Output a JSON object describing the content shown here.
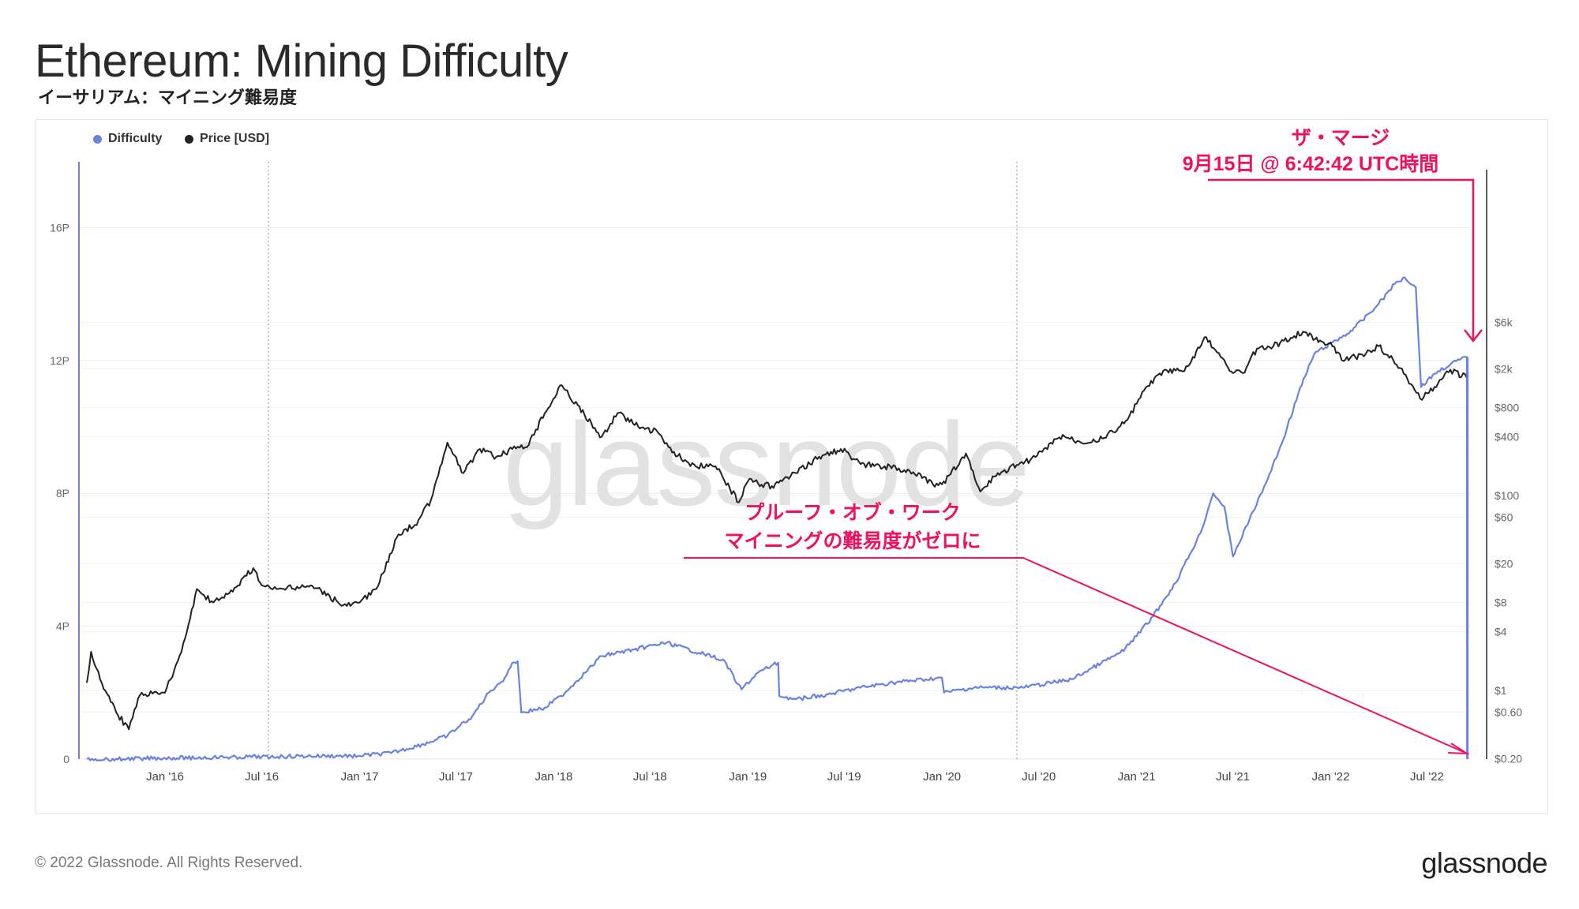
{
  "title": "Ethereum: Mining Difficulty",
  "subtitle": "イーサリアム：マイニング難易度",
  "footer": "© 2022 Glassnode. All Rights Reserved.",
  "logo": "glassnode",
  "watermark": "glassnode",
  "colors": {
    "difficulty": "#6a82e0",
    "price": "#222222",
    "annotation": "#f0105f"
  },
  "annotations": {
    "merge_line1": "ザ・マージ",
    "merge_line2": "9月15日 @ 6:42:42 UTC時間",
    "pow_line1": "プルーフ・オブ・ワーク",
    "pow_line2": "マイニングの難易度がゼロに"
  },
  "chart_data": {
    "type": "line",
    "legend": [
      "Difficulty",
      "Price [USD]"
    ],
    "legend_placement": "top-left",
    "x_ticks": [
      "Jan '16",
      "Jul '16",
      "Jan '17",
      "Jul '17",
      "Jan '18",
      "Jul '18",
      "Jan '19",
      "Jul '19",
      "Jan '20",
      "Jul '20",
      "Jan '21",
      "Jul '21",
      "Jan '22",
      "Jul '22"
    ],
    "x_range": [
      "2015-08-07",
      "2022-09-20"
    ],
    "left_axis": {
      "label": "Difficulty",
      "ticks": [
        "0",
        "4P",
        "8P",
        "12P",
        "16P"
      ],
      "range": [
        0,
        18
      ]
    },
    "right_axis": {
      "label": "Price [USD]",
      "scale": "log",
      "ticks": [
        "$0.20",
        "$0.60",
        "$1",
        "$4",
        "$8",
        "$20",
        "$60",
        "$100",
        "$400",
        "$800",
        "$2k",
        "$6k"
      ],
      "range": [
        0.2,
        6000
      ]
    },
    "grid": "horizontal",
    "series": [
      {
        "name": "Difficulty",
        "axis": "left",
        "unit": "P",
        "points": [
          [
            "2015-08-07",
            0.002
          ],
          [
            "2015-10-01",
            0.006
          ],
          [
            "2016-01-01",
            0.03
          ],
          [
            "2016-04-01",
            0.05
          ],
          [
            "2016-07-01",
            0.07
          ],
          [
            "2016-10-01",
            0.09
          ],
          [
            "2017-01-01",
            0.1
          ],
          [
            "2017-03-01",
            0.18
          ],
          [
            "2017-05-01",
            0.45
          ],
          [
            "2017-06-15",
            0.7
          ],
          [
            "2017-08-01",
            1.3
          ],
          [
            "2017-09-01",
            2.0
          ],
          [
            "2017-10-01",
            2.45
          ],
          [
            "2017-10-15",
            2.9
          ],
          [
            "2017-10-25",
            2.95
          ],
          [
            "2017-11-01",
            1.4
          ],
          [
            "2017-12-15",
            1.55
          ],
          [
            "2018-01-15",
            1.9
          ],
          [
            "2018-03-01",
            2.6
          ],
          [
            "2018-04-01",
            3.1
          ],
          [
            "2018-06-01",
            3.3
          ],
          [
            "2018-08-01",
            3.5
          ],
          [
            "2018-10-01",
            3.2
          ],
          [
            "2018-11-15",
            3.0
          ],
          [
            "2018-12-20",
            2.1
          ],
          [
            "2019-01-20",
            2.6
          ],
          [
            "2019-02-27",
            2.9
          ],
          [
            "2019-03-01",
            1.9
          ],
          [
            "2019-04-01",
            1.8
          ],
          [
            "2019-06-01",
            1.95
          ],
          [
            "2019-08-01",
            2.15
          ],
          [
            "2019-10-01",
            2.3
          ],
          [
            "2019-12-01",
            2.4
          ],
          [
            "2020-01-01",
            2.45
          ],
          [
            "2020-01-05",
            2.0
          ],
          [
            "2020-03-01",
            2.15
          ],
          [
            "2020-06-01",
            2.15
          ],
          [
            "2020-09-01",
            2.4
          ],
          [
            "2020-12-01",
            3.2
          ],
          [
            "2021-01-01",
            3.7
          ],
          [
            "2021-02-01",
            4.3
          ],
          [
            "2021-03-15",
            5.3
          ],
          [
            "2021-05-01",
            6.8
          ],
          [
            "2021-05-25",
            8.0
          ],
          [
            "2021-06-15",
            7.6
          ],
          [
            "2021-07-01",
            6.1
          ],
          [
            "2021-08-01",
            7.2
          ],
          [
            "2021-09-01",
            8.3
          ],
          [
            "2021-10-01",
            9.5
          ],
          [
            "2021-11-01",
            11.0
          ],
          [
            "2021-12-01",
            12.2
          ],
          [
            "2022-01-01",
            12.5
          ],
          [
            "2022-02-01",
            12.8
          ],
          [
            "2022-03-01",
            13.2
          ],
          [
            "2022-04-01",
            13.7
          ],
          [
            "2022-05-01",
            14.3
          ],
          [
            "2022-05-20",
            14.5
          ],
          [
            "2022-06-10",
            14.2
          ],
          [
            "2022-06-20",
            11.2
          ],
          [
            "2022-07-15",
            11.6
          ],
          [
            "2022-08-15",
            11.9
          ],
          [
            "2022-09-14",
            12.1
          ],
          [
            "2022-09-15",
            0.0
          ]
        ]
      },
      {
        "name": "Price [USD]",
        "axis": "right",
        "unit": "USD",
        "points": [
          [
            "2015-08-07",
            1.2
          ],
          [
            "2015-08-15",
            2.5
          ],
          [
            "2015-09-01",
            1.3
          ],
          [
            "2015-10-01",
            0.6
          ],
          [
            "2015-10-25",
            0.4
          ],
          [
            "2015-11-15",
            0.9
          ],
          [
            "2016-01-01",
            0.95
          ],
          [
            "2016-02-01",
            2.5
          ],
          [
            "2016-03-01",
            11
          ],
          [
            "2016-04-01",
            8
          ],
          [
            "2016-05-01",
            10
          ],
          [
            "2016-06-15",
            18
          ],
          [
            "2016-07-01",
            12
          ],
          [
            "2016-08-01",
            11
          ],
          [
            "2016-10-01",
            12
          ],
          [
            "2016-12-01",
            7.5
          ],
          [
            "2017-01-01",
            8
          ],
          [
            "2017-02-01",
            11
          ],
          [
            "2017-03-15",
            40
          ],
          [
            "2017-04-15",
            50
          ],
          [
            "2017-05-15",
            90
          ],
          [
            "2017-06-15",
            350
          ],
          [
            "2017-07-15",
            170
          ],
          [
            "2017-08-15",
            300
          ],
          [
            "2017-09-15",
            250
          ],
          [
            "2017-10-15",
            300
          ],
          [
            "2017-11-15",
            330
          ],
          [
            "2017-12-15",
            700
          ],
          [
            "2018-01-13",
            1350
          ],
          [
            "2018-02-15",
            850
          ],
          [
            "2018-04-01",
            400
          ],
          [
            "2018-05-01",
            700
          ],
          [
            "2018-06-15",
            500
          ],
          [
            "2018-07-15",
            450
          ],
          [
            "2018-08-15",
            280
          ],
          [
            "2018-09-15",
            200
          ],
          [
            "2018-11-01",
            200
          ],
          [
            "2018-12-15",
            85
          ],
          [
            "2019-01-01",
            140
          ],
          [
            "2019-02-15",
            125
          ],
          [
            "2019-04-01",
            170
          ],
          [
            "2019-05-15",
            250
          ],
          [
            "2019-06-25",
            300
          ],
          [
            "2019-08-01",
            210
          ],
          [
            "2019-09-15",
            200
          ],
          [
            "2019-11-01",
            180
          ],
          [
            "2019-12-15",
            130
          ],
          [
            "2020-01-01",
            130
          ],
          [
            "2020-02-15",
            270
          ],
          [
            "2020-03-13",
            110
          ],
          [
            "2020-04-15",
            170
          ],
          [
            "2020-06-15",
            230
          ],
          [
            "2020-08-15",
            420
          ],
          [
            "2020-09-15",
            360
          ],
          [
            "2020-11-01",
            390
          ],
          [
            "2020-12-15",
            600
          ],
          [
            "2021-01-15",
            1200
          ],
          [
            "2021-02-20",
            1900
          ],
          [
            "2021-04-01",
            1900
          ],
          [
            "2021-05-12",
            4200
          ],
          [
            "2021-06-25",
            1900
          ],
          [
            "2021-07-20",
            1800
          ],
          [
            "2021-08-15",
            3200
          ],
          [
            "2021-09-15",
            3400
          ],
          [
            "2021-11-10",
            4800
          ],
          [
            "2021-12-15",
            3800
          ],
          [
            "2022-01-01",
            3700
          ],
          [
            "2022-01-25",
            2400
          ],
          [
            "2022-03-01",
            2800
          ],
          [
            "2022-04-01",
            3400
          ],
          [
            "2022-05-15",
            2000
          ],
          [
            "2022-06-18",
            990
          ],
          [
            "2022-07-15",
            1300
          ],
          [
            "2022-08-14",
            1950
          ],
          [
            "2022-09-14",
            1600
          ],
          [
            "2022-09-15",
            1450
          ]
        ]
      }
    ]
  }
}
